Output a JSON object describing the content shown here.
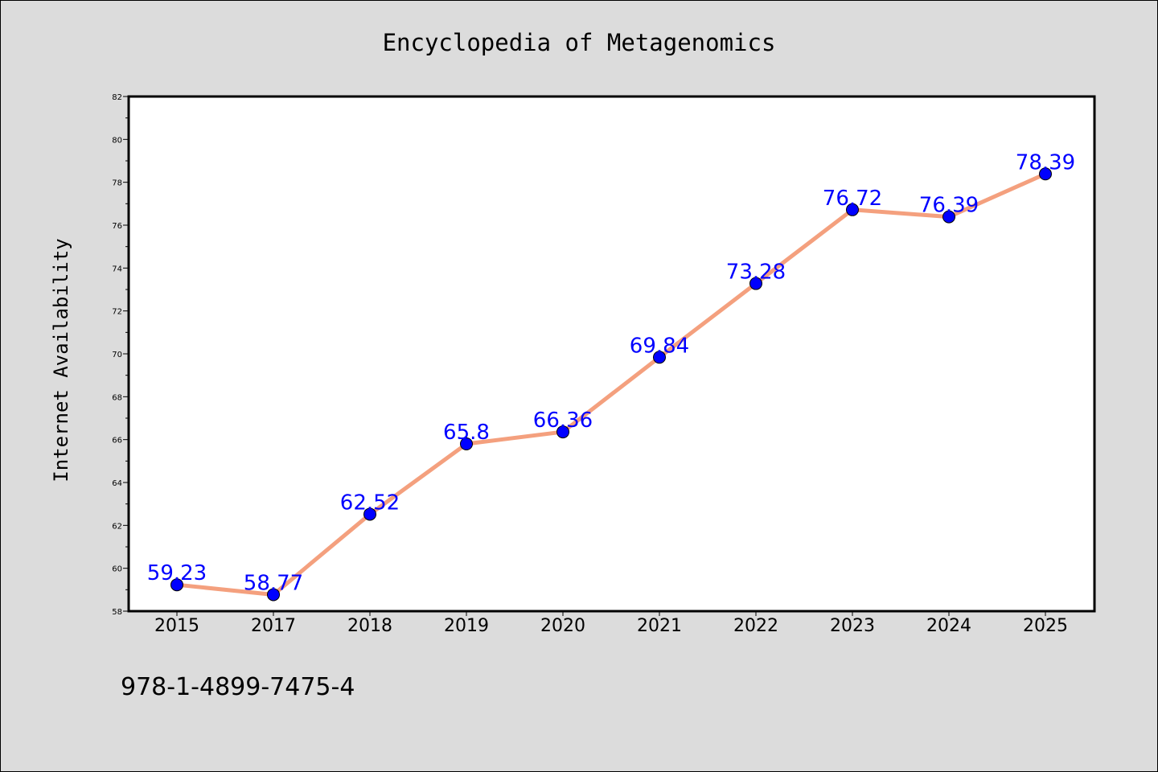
{
  "chart_data": {
    "type": "line",
    "title": "Encyclopedia of Metagenomics",
    "xlabel": "",
    "ylabel": "Internet Availability",
    "categories": [
      "2015",
      "2017",
      "2018",
      "2019",
      "2020",
      "2021",
      "2022",
      "2023",
      "2024",
      "2025"
    ],
    "series": [
      {
        "values": [
          59.23,
          58.77,
          62.52,
          65.8,
          66.36,
          69.84,
          73.28,
          76.72,
          76.39,
          78.39
        ],
        "data_labels": [
          "59.23",
          "58.77",
          "62.52",
          "65.8",
          "66.36",
          "69.84",
          "73.28",
          "76.72",
          "76.39",
          "78.39"
        ]
      }
    ],
    "ylim": [
      58,
      82
    ],
    "yticks": [
      "58",
      "60",
      "62",
      "64",
      "66",
      "68",
      "70",
      "72",
      "74",
      "76",
      "78",
      "80",
      "82"
    ],
    "grid": false,
    "line_color": "#f4a07e",
    "marker_color": "#0000ff",
    "label_color": "#0000ff"
  },
  "footer": {
    "isbn": "978-1-4899-7475-4"
  },
  "colors": {
    "background": "#dcdcdc",
    "plot_area": "#ffffff"
  }
}
